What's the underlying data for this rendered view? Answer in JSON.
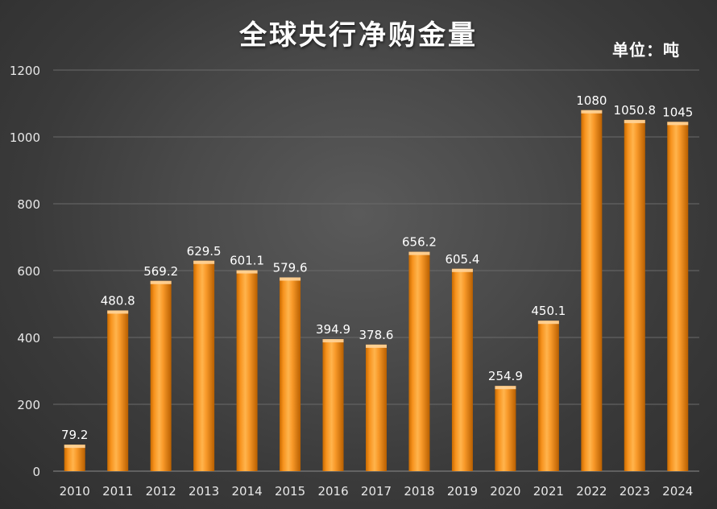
{
  "title": "全球央行净购金量",
  "unit_label": "单位：吨",
  "colors": {
    "bar_light": "#ffb44d",
    "bar_mid": "#f7931e",
    "bar_dark": "#c96a00",
    "bar_top": "#ffd49a",
    "text": "#ffffff",
    "axis_text": "#e8e8e8",
    "gridline": "#6a6a6a",
    "axis_line": "#8c8c8c"
  },
  "chart_data": {
    "type": "bar",
    "title": "全球央行净购金量",
    "xlabel": "",
    "ylabel": "",
    "unit": "单位：吨",
    "ylim": [
      0,
      1200
    ],
    "yticks": [
      0,
      200,
      400,
      600,
      800,
      1000,
      1200
    ],
    "grid": true,
    "legend": "none",
    "categories": [
      "2010",
      "2011",
      "2012",
      "2013",
      "2014",
      "2015",
      "2016",
      "2017",
      "2018",
      "2019",
      "2020",
      "2021",
      "2022",
      "2023",
      "2024"
    ],
    "values": [
      79.2,
      480.8,
      569.2,
      629.5,
      601.1,
      579.6,
      394.9,
      378.6,
      656.2,
      605.4,
      254.9,
      450.1,
      1080,
      1050.8,
      1045
    ],
    "value_labels": [
      "79.2",
      "480.8",
      "569.2",
      "629.5",
      "601.1",
      "579.6",
      "394.9",
      "378.6",
      "656.2",
      "605.4",
      "254.9",
      "450.1",
      "1080",
      "1050.8",
      "1045"
    ]
  }
}
